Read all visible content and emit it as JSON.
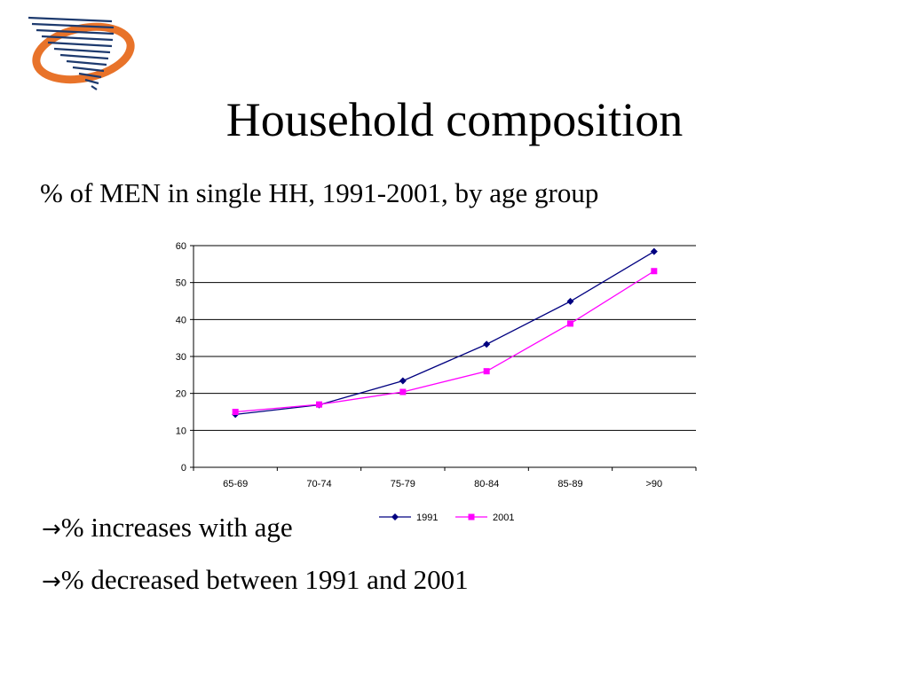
{
  "slide": {
    "title": "Household composition",
    "subtitle": "% of MEN in single HH, 1991-2001, by age group",
    "bullets": [
      {
        "arrow": "→",
        "text": "% increases with age"
      },
      {
        "arrow": "→",
        "text": "% decreased between 1991 and 2001"
      }
    ],
    "logo_icon": "company-swoosh-logo"
  },
  "chart_data": {
    "type": "line",
    "categories": [
      "65-69",
      "70-74",
      "75-79",
      "80-84",
      "85-89",
      ">90"
    ],
    "series": [
      {
        "name": "1991",
        "values": [
          14.3,
          16.9,
          23.4,
          33.3,
          44.9,
          58.4
        ],
        "color": "#000080",
        "marker": "diamond"
      },
      {
        "name": "2001",
        "values": [
          15.0,
          17.0,
          20.4,
          26.0,
          38.9,
          53.1
        ],
        "color": "#ff00ff",
        "marker": "square"
      }
    ],
    "yticks": [
      0,
      10,
      20,
      30,
      40,
      50,
      60
    ],
    "ylim": [
      0,
      60
    ],
    "grid": true,
    "legend_position": "bottom"
  }
}
